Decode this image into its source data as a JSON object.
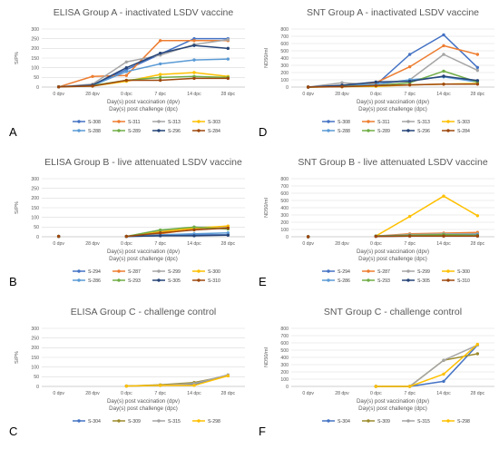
{
  "chart_data": [
    {
      "panel_letter": "A",
      "type": "line",
      "title": "ELISA Group A - inactivated LSDV vaccine",
      "ylabel": "S/P%",
      "xlabel_lines": [
        "Day(s) post vaccination (dpv)",
        "Day(s) post challenge (dpc)"
      ],
      "ylim": [
        0,
        300
      ],
      "yticks": [
        0,
        50,
        100,
        150,
        200,
        250,
        300
      ],
      "categories": [
        "0 dpv",
        "28 dpv",
        "0 dpc",
        "7 dpc",
        "14 dpc",
        "28 dpc"
      ],
      "grid": true,
      "legend_placement": "bottom",
      "series": [
        {
          "name": "S-308",
          "color": "#4472c4",
          "values": [
            1,
            8,
            90,
            170,
            250,
            250
          ]
        },
        {
          "name": "S-311",
          "color": "#ed7d31",
          "values": [
            1,
            55,
            60,
            240,
            240,
            240
          ]
        },
        {
          "name": "S-313",
          "color": "#a5a5a5",
          "values": [
            1,
            15,
            130,
            165,
            220,
            245
          ]
        },
        {
          "name": "S-303",
          "color": "#ffc000",
          "values": [
            1,
            5,
            30,
            65,
            75,
            55
          ]
        },
        {
          "name": "S-288",
          "color": "#5b9bd5",
          "values": [
            1,
            8,
            80,
            120,
            140,
            145
          ]
        },
        {
          "name": "S-289",
          "color": "#70ad47",
          "values": [
            1,
            8,
            35,
            50,
            55,
            50
          ]
        },
        {
          "name": "S-296",
          "color": "#264478",
          "values": [
            1,
            10,
            100,
            175,
            215,
            200
          ]
        },
        {
          "name": "S-284",
          "color": "#9e480e",
          "values": [
            1,
            5,
            35,
            35,
            45,
            45
          ]
        }
      ]
    },
    {
      "panel_letter": "D",
      "type": "line",
      "title": "SNT Group A - inactivated LSDV vaccine",
      "ylabel": "ND50/ml",
      "xlabel_lines": [
        "Day(s) post vaccination (dpv)",
        "Day(s) post challenge (dpc)"
      ],
      "ylim": [
        0,
        800
      ],
      "yticks": [
        0,
        100,
        200,
        300,
        400,
        500,
        600,
        700,
        800
      ],
      "categories": [
        "0 dpv",
        "28 dpv",
        "0 dpc",
        "7 dpc",
        "14 dpc",
        "28 dpc"
      ],
      "grid": true,
      "legend_placement": "bottom",
      "series": [
        {
          "name": "S-308",
          "color": "#4472c4",
          "values": [
            0,
            20,
            30,
            450,
            720,
            270
          ]
        },
        {
          "name": "S-311",
          "color": "#ed7d31",
          "values": [
            0,
            10,
            60,
            280,
            570,
            450
          ]
        },
        {
          "name": "S-313",
          "color": "#a5a5a5",
          "values": [
            0,
            60,
            30,
            100,
            450,
            230
          ]
        },
        {
          "name": "S-303",
          "color": "#ffc000",
          "values": [
            0,
            5,
            10,
            30,
            40,
            50
          ]
        },
        {
          "name": "S-288",
          "color": "#5b9bd5",
          "values": [
            0,
            15,
            40,
            100,
            140,
            70
          ]
        },
        {
          "name": "S-289",
          "color": "#70ad47",
          "values": [
            0,
            10,
            20,
            60,
            220,
            70
          ]
        },
        {
          "name": "S-296",
          "color": "#264478",
          "values": [
            0,
            25,
            70,
            80,
            150,
            90
          ]
        },
        {
          "name": "S-284",
          "color": "#9e480e",
          "values": [
            0,
            5,
            20,
            30,
            40,
            40
          ]
        }
      ]
    },
    {
      "panel_letter": "B",
      "type": "line",
      "title": "ELISA Group B - live attenuated LSDV vaccine",
      "ylabel": "S/P%",
      "xlabel_lines": [
        "Day(s) post vaccination (dpv)",
        "Day(s) post challenge (dpc)"
      ],
      "ylim": [
        0,
        300
      ],
      "yticks": [
        0,
        50,
        100,
        150,
        200,
        250,
        300
      ],
      "categories": [
        "0 dpv",
        "28 dpv",
        "0 dpc",
        "7 dpc",
        "14 dpc",
        "28 dpc"
      ],
      "grid": true,
      "legend_placement": "bottom",
      "series": [
        {
          "name": "S-294",
          "color": "#4472c4",
          "values": [
            2,
            null,
            2,
            5,
            10,
            10
          ]
        },
        {
          "name": "S-287",
          "color": "#ed7d31",
          "values": [
            2,
            null,
            2,
            15,
            40,
            55
          ]
        },
        {
          "name": "S-299",
          "color": "#a5a5a5",
          "values": [
            2,
            null,
            2,
            30,
            50,
            50
          ]
        },
        {
          "name": "S-300",
          "color": "#ffc000",
          "values": [
            2,
            null,
            2,
            25,
            45,
            55
          ]
        },
        {
          "name": "S-286",
          "color": "#5b9bd5",
          "values": [
            2,
            null,
            2,
            10,
            15,
            20
          ]
        },
        {
          "name": "S-293",
          "color": "#70ad47",
          "values": [
            2,
            null,
            2,
            35,
            50,
            40
          ]
        },
        {
          "name": "S-305",
          "color": "#264478",
          "values": [
            2,
            null,
            2,
            5,
            5,
            8
          ]
        },
        {
          "name": "S-310",
          "color": "#9e480e",
          "values": [
            2,
            null,
            2,
            20,
            35,
            45
          ]
        }
      ]
    },
    {
      "panel_letter": "E",
      "type": "line",
      "title": "SNT Group B - live attenuated LSDV vaccine",
      "ylabel": "ND50/ml",
      "xlabel_lines": [
        "Day(s) post vaccination (dpv)",
        "Day(s) post challenge (dpc)"
      ],
      "ylim": [
        0,
        800
      ],
      "yticks": [
        0,
        100,
        200,
        300,
        400,
        500,
        600,
        700,
        800
      ],
      "categories": [
        "0 dpv",
        "28 dpv",
        "0 dpc",
        "7 dpc",
        "14 dpc",
        "28 dpc"
      ],
      "grid": true,
      "legend_placement": "bottom",
      "series": [
        {
          "name": "S-294",
          "color": "#4472c4",
          "values": [
            0,
            null,
            10,
            20,
            20,
            20
          ]
        },
        {
          "name": "S-287",
          "color": "#ed7d31",
          "values": [
            0,
            null,
            10,
            40,
            50,
            60
          ]
        },
        {
          "name": "S-299",
          "color": "#a5a5a5",
          "values": [
            0,
            null,
            10,
            30,
            40,
            40
          ]
        },
        {
          "name": "S-300",
          "color": "#ffc000",
          "values": [
            0,
            null,
            10,
            280,
            560,
            290
          ]
        },
        {
          "name": "S-286",
          "color": "#5b9bd5",
          "values": [
            0,
            null,
            10,
            20,
            30,
            30
          ]
        },
        {
          "name": "S-293",
          "color": "#70ad47",
          "values": [
            0,
            null,
            10,
            20,
            30,
            20
          ]
        },
        {
          "name": "S-305",
          "color": "#264478",
          "values": [
            0,
            null,
            5,
            10,
            10,
            10
          ]
        },
        {
          "name": "S-310",
          "color": "#9e480e",
          "values": [
            0,
            null,
            5,
            10,
            10,
            10
          ]
        }
      ]
    },
    {
      "panel_letter": "C",
      "type": "line",
      "title": "ELISA Group C - challenge control",
      "ylabel": "S/P%",
      "xlabel_lines": [
        "Day(s) post vaccination (dpv)",
        "Day(s) post challenge (dpc)"
      ],
      "ylim": [
        0,
        300
      ],
      "yticks": [
        0,
        50,
        100,
        150,
        200,
        250,
        300
      ],
      "categories": [
        "0 dpv",
        "28 dpv",
        "0 dpc",
        "7 dpc",
        "14 dpc",
        "28 dpc"
      ],
      "grid": true,
      "legend_placement": "bottom",
      "series": [
        {
          "name": "S-304",
          "color": "#4472c4",
          "values": [
            null,
            null,
            2,
            5,
            10,
            55
          ]
        },
        {
          "name": "S-309",
          "color": "#9c8b2c",
          "values": [
            null,
            null,
            2,
            8,
            20,
            55
          ]
        },
        {
          "name": "S-315",
          "color": "#a5a5a5",
          "values": [
            null,
            null,
            2,
            5,
            15,
            60
          ]
        },
        {
          "name": "S-298",
          "color": "#ffc000",
          "values": [
            null,
            null,
            2,
            5,
            5,
            55
          ]
        }
      ]
    },
    {
      "panel_letter": "F",
      "type": "line",
      "title": "SNT Group C - challenge control",
      "ylabel": "ND50/ml",
      "xlabel_lines": [
        "Day(s) post vaccination (dpv)",
        "Day(s) post challenge (dpc)"
      ],
      "ylim": [
        0,
        800
      ],
      "yticks": [
        0,
        100,
        200,
        300,
        400,
        500,
        600,
        700,
        800
      ],
      "categories": [
        "0 dpv",
        "28 dpv",
        "0 dpc",
        "7 dpc",
        "14 dpc",
        "28 dpc"
      ],
      "grid": true,
      "legend_placement": "bottom",
      "series": [
        {
          "name": "S-304",
          "color": "#4472c4",
          "values": [
            null,
            null,
            0,
            0,
            70,
            570
          ]
        },
        {
          "name": "S-309",
          "color": "#9c8b2c",
          "values": [
            null,
            null,
            0,
            0,
            360,
            450
          ]
        },
        {
          "name": "S-315",
          "color": "#a5a5a5",
          "values": [
            null,
            null,
            0,
            0,
            360,
            570
          ]
        },
        {
          "name": "S-298",
          "color": "#ffc000",
          "values": [
            null,
            null,
            0,
            0,
            170,
            580
          ]
        }
      ]
    }
  ]
}
